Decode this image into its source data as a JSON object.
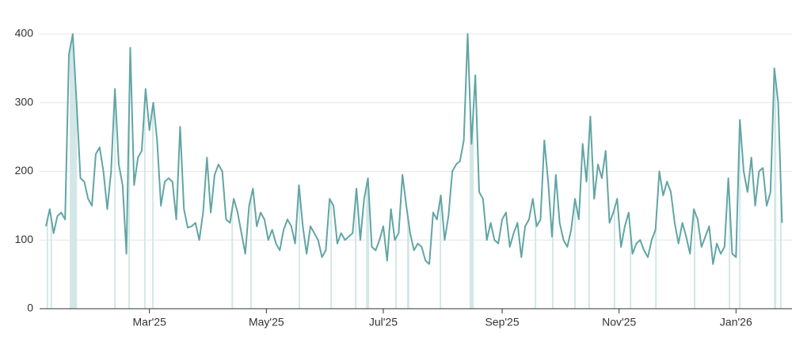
{
  "chart_data": {
    "type": "line",
    "color": "#62a5a5",
    "highlight_color": "#d3e7e7",
    "grid": true,
    "xlim": [
      -1.65,
      194.6
    ],
    "xticks": [
      {
        "value": 27,
        "label": "Mar'25"
      },
      {
        "value": 57.5,
        "label": "May'25"
      },
      {
        "value": 88,
        "label": "Jul'25"
      },
      {
        "value": 119,
        "label": "Sep'25"
      },
      {
        "value": 149.5,
        "label": "Nov'25"
      },
      {
        "value": 180,
        "label": "Jan'26"
      }
    ],
    "ylim": [
      0,
      420
    ],
    "yticks": [
      0,
      100,
      200,
      300,
      400
    ],
    "values": [
      120,
      145,
      110,
      135,
      140,
      130,
      370,
      400,
      300,
      190,
      185,
      160,
      150,
      225,
      235,
      200,
      145,
      200,
      320,
      210,
      180,
      80,
      380,
      180,
      220,
      230,
      320,
      260,
      300,
      245,
      150,
      185,
      190,
      185,
      130,
      265,
      145,
      118,
      120,
      125,
      100,
      140,
      220,
      140,
      195,
      210,
      200,
      130,
      125,
      160,
      140,
      110,
      80,
      150,
      175,
      120,
      140,
      130,
      100,
      115,
      95,
      85,
      115,
      130,
      120,
      95,
      180,
      120,
      80,
      120,
      110,
      100,
      75,
      85,
      160,
      150,
      95,
      110,
      100,
      105,
      110,
      175,
      100,
      160,
      190,
      90,
      85,
      100,
      120,
      70,
      145,
      100,
      110,
      195,
      150,
      110,
      85,
      95,
      90,
      70,
      65,
      140,
      130,
      165,
      100,
      135,
      200,
      210,
      215,
      245,
      400,
      240,
      340,
      170,
      160,
      100,
      125,
      100,
      95,
      130,
      140,
      90,
      110,
      125,
      75,
      120,
      130,
      160,
      120,
      130,
      245,
      185,
      105,
      195,
      125,
      100,
      90,
      115,
      160,
      130,
      240,
      185,
      280,
      160,
      210,
      190,
      230,
      125,
      140,
      160,
      90,
      120,
      140,
      80,
      95,
      100,
      85,
      75,
      100,
      115,
      200,
      165,
      185,
      170,
      125,
      95,
      125,
      105,
      80,
      145,
      130,
      90,
      105,
      120,
      65,
      95,
      80,
      90,
      190,
      80,
      75,
      275,
      200,
      170,
      220,
      150,
      200,
      205,
      150,
      170,
      350,
      300,
      125
    ],
    "highlights": [
      [
        0.2,
        0.6
      ],
      [
        1.2,
        1.6
      ],
      [
        6.2,
        8.1
      ],
      [
        17.8,
        18.2
      ],
      [
        21.5,
        21.9
      ],
      [
        25.6,
        26
      ],
      [
        27.7,
        28.1
      ],
      [
        48.4,
        48.8
      ],
      [
        53.3,
        53.7
      ],
      [
        65.9,
        66.3
      ],
      [
        74.2,
        74.6
      ],
      [
        80.6,
        81
      ],
      [
        83.5,
        84.3
      ],
      [
        91.1,
        91.5
      ],
      [
        94.2,
        94.8
      ],
      [
        102.7,
        103.1
      ],
      [
        110.5,
        111.6
      ],
      [
        127.5,
        127.9
      ],
      [
        132,
        132.4
      ],
      [
        137.8,
        138.2
      ],
      [
        141.5,
        141.9
      ],
      [
        148.1,
        148.5
      ],
      [
        152.3,
        152.7
      ],
      [
        158.9,
        159.3
      ],
      [
        169,
        169.4
      ],
      [
        178.1,
        178.5
      ],
      [
        180.8,
        181.2
      ],
      [
        189.9,
        190.5
      ],
      [
        191.5,
        191.9
      ]
    ]
  }
}
